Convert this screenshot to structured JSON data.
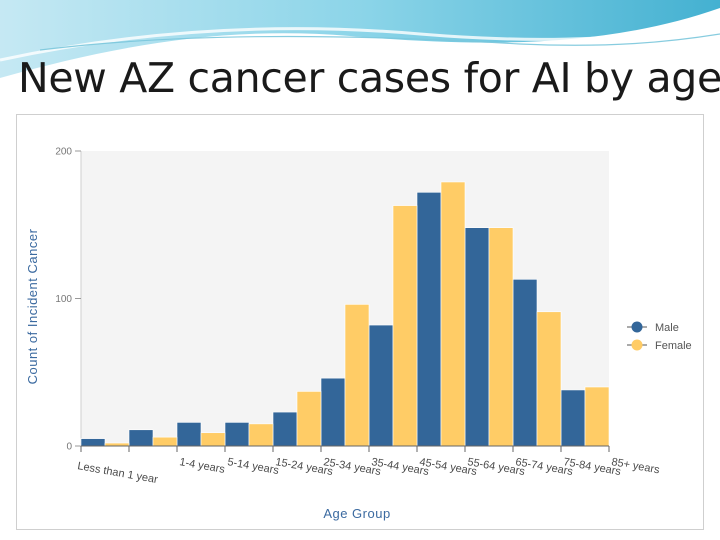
{
  "slide": {
    "title": "New AZ cancer cases for AI by age"
  },
  "colors": {
    "male": "#336699",
    "female": "#ffcc66",
    "plot_bg": "#f4f4f4",
    "title_accent": "#3b6aa0"
  },
  "chart_data": {
    "type": "bar",
    "xlabel": "Age Group",
    "ylabel": "Count of Incident Cancer",
    "ylim": [
      0,
      200
    ],
    "yticks": [
      0,
      100,
      200
    ],
    "grid": false,
    "legend_position": "right",
    "categories": [
      "Less than 1 year",
      "1-4 years",
      "5-14 years",
      "15-24 years",
      "25-34 years",
      "35-44 years",
      "45-54 years",
      "55-64 years",
      "65-74 years",
      "75-84 years",
      "85+ years"
    ],
    "series": [
      {
        "name": "Male",
        "values": [
          5,
          11,
          16,
          16,
          23,
          46,
          82,
          172,
          148,
          113,
          38
        ]
      },
      {
        "name": "Female",
        "values": [
          2,
          6,
          9,
          15,
          37,
          96,
          163,
          179,
          148,
          91,
          40
        ]
      }
    ]
  }
}
